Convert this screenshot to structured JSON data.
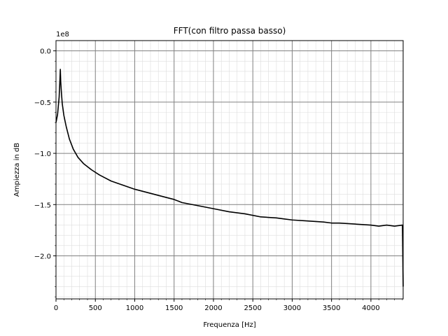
{
  "chart_data": {
    "type": "line",
    "title": "FFT(con filtro passa basso)",
    "xlabel": "Frequenza [Hz]",
    "ylabel": "Ampiezza in dB",
    "y_scale_label": "1e8",
    "xlim": [
      0,
      4410
    ],
    "ylim": [
      -2.42,
      0.1
    ],
    "x_ticks": [
      0,
      500,
      1000,
      1500,
      2000,
      2500,
      3000,
      3500,
      4000
    ],
    "x_tick_labels": [
      "0",
      "500",
      "1000",
      "1500",
      "2000",
      "2500",
      "3000",
      "3500",
      "4000"
    ],
    "y_ticks": [
      0.0,
      -0.5,
      -1.0,
      -1.5,
      -2.0
    ],
    "y_tick_labels": [
      "0.0",
      "−0.5",
      "−1.0",
      "−1.5",
      "−2.0"
    ],
    "grid": "major and minor",
    "line_color": "#000000",
    "series": [
      {
        "x": [
          0,
          20,
          40,
          50,
          55,
          60,
          70,
          80,
          100,
          130,
          170,
          220,
          280,
          350,
          450,
          550,
          700,
          850,
          1000,
          1200,
          1400,
          1500,
          1600,
          1800,
          2000,
          2200,
          2400,
          2600,
          2800,
          2900,
          3000,
          3200,
          3400,
          3500,
          3600,
          3800,
          4000,
          4100,
          4200,
          4300,
          4400,
          4410
        ],
        "y": [
          -0.7,
          -0.62,
          -0.45,
          -0.28,
          -0.18,
          -0.3,
          -0.42,
          -0.52,
          -0.63,
          -0.74,
          -0.86,
          -0.96,
          -1.04,
          -1.1,
          -1.16,
          -1.21,
          -1.27,
          -1.31,
          -1.35,
          -1.39,
          -1.43,
          -1.45,
          -1.48,
          -1.51,
          -1.54,
          -1.57,
          -1.59,
          -1.62,
          -1.63,
          -1.64,
          -1.65,
          -1.66,
          -1.67,
          -1.68,
          -1.68,
          -1.69,
          -1.7,
          -1.71,
          -1.7,
          -1.71,
          -1.7,
          -2.3
        ]
      }
    ]
  }
}
